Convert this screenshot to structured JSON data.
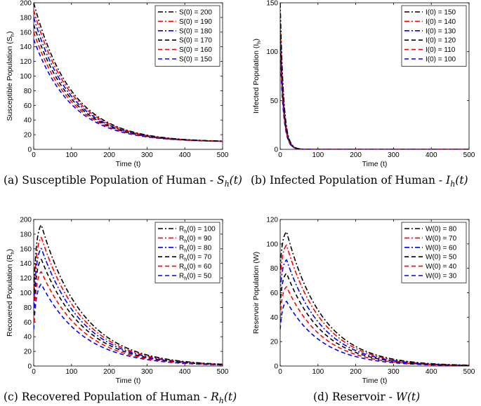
{
  "chart_data": [
    {
      "type": "line",
      "caption": "(a) Susceptible Population of Human - ",
      "caption_math": "S_h(t)",
      "caption_math_base": "S",
      "caption_math_sub": "h",
      "caption_math_tail": "(t)",
      "xlabel": "Time (t)",
      "ylabel": "Susceptible Population (S",
      "ylabel_sub": "h",
      "ylabel_tail": ")",
      "xlim": [
        0,
        500
      ],
      "ylim": [
        0,
        200
      ],
      "xticks": [
        "0",
        "100",
        "200",
        "300",
        "400",
        "500"
      ],
      "yticks": [
        "0",
        "20",
        "40",
        "60",
        "80",
        "100",
        "120",
        "140",
        "160",
        "180",
        "200"
      ],
      "legend_position": "top-right",
      "model": {
        "kind": "decay",
        "floor": 10,
        "tau": 100
      },
      "series": [
        {
          "name": "S(0) = 200",
          "start": 200,
          "color": "#000000",
          "dash": "dashdot"
        },
        {
          "name": "S(0) = 190",
          "start": 190,
          "color": "#ff0000",
          "dash": "dashdot"
        },
        {
          "name": "S(0) = 180",
          "start": 180,
          "color": "#0000ff",
          "dash": "dashdot"
        },
        {
          "name": "S(0) = 170",
          "start": 170,
          "color": "#000000",
          "dash": "dashed"
        },
        {
          "name": "S(0) = 160",
          "start": 160,
          "color": "#ff0000",
          "dash": "dashed"
        },
        {
          "name": "S(0) = 150",
          "start": 150,
          "color": "#0000ff",
          "dash": "dashed"
        }
      ]
    },
    {
      "type": "line",
      "caption": "(b) Infected Population of Human - ",
      "caption_math": "I_h(t)",
      "caption_math_base": "I",
      "caption_math_sub": "h",
      "caption_math_tail": "(t)",
      "xlabel": "Time (t)",
      "ylabel": "Infected Population (I",
      "ylabel_sub": "h",
      "ylabel_tail": ")",
      "xlim": [
        0,
        500
      ],
      "ylim": [
        0,
        150
      ],
      "xticks": [
        "0",
        "100",
        "200",
        "300",
        "400",
        "500"
      ],
      "yticks": [
        "0",
        "50",
        "100",
        "150"
      ],
      "legend_position": "top-right",
      "model": {
        "kind": "decay",
        "floor": 0,
        "tau": 9
      },
      "series": [
        {
          "name": "I(0) = 150",
          "start": 150,
          "color": "#000000",
          "dash": "dashdot"
        },
        {
          "name": "I(0) = 140",
          "start": 140,
          "color": "#ff0000",
          "dash": "dashdot"
        },
        {
          "name": "I(0) = 130",
          "start": 130,
          "color": "#0000ff",
          "dash": "dashdot"
        },
        {
          "name": "I(0) = 120",
          "start": 120,
          "color": "#000000",
          "dash": "dashed"
        },
        {
          "name": "I(0) = 110",
          "start": 110,
          "color": "#ff0000",
          "dash": "dashed"
        },
        {
          "name": "I(0) = 100",
          "start": 100,
          "color": "#0000ff",
          "dash": "dashed"
        }
      ]
    },
    {
      "type": "line",
      "caption": "(c) Recovered Population of Human - ",
      "caption_math": "R_h(t)",
      "caption_math_base": "R",
      "caption_math_sub": "h",
      "caption_math_tail": "(t)",
      "xlabel": "Time (t)",
      "ylabel": "Recovered Population (R",
      "ylabel_sub": "h",
      "ylabel_tail": ")",
      "xlim": [
        0,
        500
      ],
      "ylim": [
        0,
        200
      ],
      "xticks": [
        "0",
        "100",
        "200",
        "300",
        "400",
        "500"
      ],
      "yticks": [
        "0",
        "20",
        "40",
        "60",
        "80",
        "100",
        "120",
        "140",
        "160",
        "180",
        "200"
      ],
      "legend_position": "top-right",
      "legend_label_prefix": "R",
      "legend_label_sub": "h",
      "model": {
        "kind": "rise_decay",
        "tau_rise": 7,
        "tau_decay": 110
      },
      "series": [
        {
          "name": "R_h(0) = 100",
          "label_tail": "(0) = 100",
          "start": 100,
          "peak": 193,
          "peak_t": 20,
          "color": "#000000",
          "dash": "dashdot"
        },
        {
          "name": "R_h(0) = 90",
          "label_tail": "(0) = 90",
          "start": 90,
          "peak": 176,
          "peak_t": 20,
          "color": "#ff0000",
          "dash": "dashdot"
        },
        {
          "name": "R_h(0) = 80",
          "label_tail": "(0) = 80",
          "start": 80,
          "peak": 161,
          "peak_t": 20,
          "color": "#0000ff",
          "dash": "dashdot"
        },
        {
          "name": "R_h(0) = 70",
          "label_tail": "(0) = 70",
          "start": 70,
          "peak": 146,
          "peak_t": 20,
          "color": "#000000",
          "dash": "dashed"
        },
        {
          "name": "R_h(0) = 60",
          "label_tail": "(0) = 60",
          "start": 60,
          "peak": 129,
          "peak_t": 20,
          "color": "#ff0000",
          "dash": "dashed"
        },
        {
          "name": "R_h(0) = 50",
          "label_tail": "(0) = 50",
          "start": 50,
          "peak": 112,
          "peak_t": 20,
          "color": "#0000ff",
          "dash": "dashed"
        }
      ]
    },
    {
      "type": "line",
      "caption": "(d) Reservoir - ",
      "caption_math": "W(t)",
      "caption_math_base": "W",
      "caption_math_sub": "",
      "caption_math_tail": "(t)",
      "xlabel": "Time (t)",
      "ylabel": "Reservoir Population (W)",
      "ylabel_sub": "",
      "ylabel_tail": "",
      "xlim": [
        0,
        500
      ],
      "ylim": [
        0,
        120
      ],
      "xticks": [
        "0",
        "100",
        "200",
        "300",
        "400",
        "500"
      ],
      "yticks": [
        "0",
        "20",
        "40",
        "60",
        "80",
        "100",
        "120"
      ],
      "legend_position": "top-right",
      "model": {
        "kind": "rise_decay",
        "tau_rise": 6,
        "tau_decay": 95
      },
      "series": [
        {
          "name": "W(0) = 80",
          "start": 80,
          "peak": 110,
          "peak_t": 17,
          "color": "#000000",
          "dash": "dashdot"
        },
        {
          "name": "W(0) = 70",
          "start": 70,
          "peak": 99,
          "peak_t": 17,
          "color": "#ff0000",
          "dash": "dashdot"
        },
        {
          "name": "W(0) = 60",
          "start": 60,
          "peak": 87,
          "peak_t": 17,
          "color": "#0000ff",
          "dash": "dashdot"
        },
        {
          "name": "W(0) = 50",
          "start": 50,
          "peak": 76,
          "peak_t": 17,
          "color": "#000000",
          "dash": "dashed"
        },
        {
          "name": "W(0) = 40",
          "start": 40,
          "peak": 65,
          "peak_t": 17,
          "color": "#ff0000",
          "dash": "dashed"
        },
        {
          "name": "W(0) = 30",
          "start": 30,
          "peak": 53,
          "peak_t": 17,
          "color": "#0000ff",
          "dash": "dashed"
        }
      ]
    }
  ]
}
